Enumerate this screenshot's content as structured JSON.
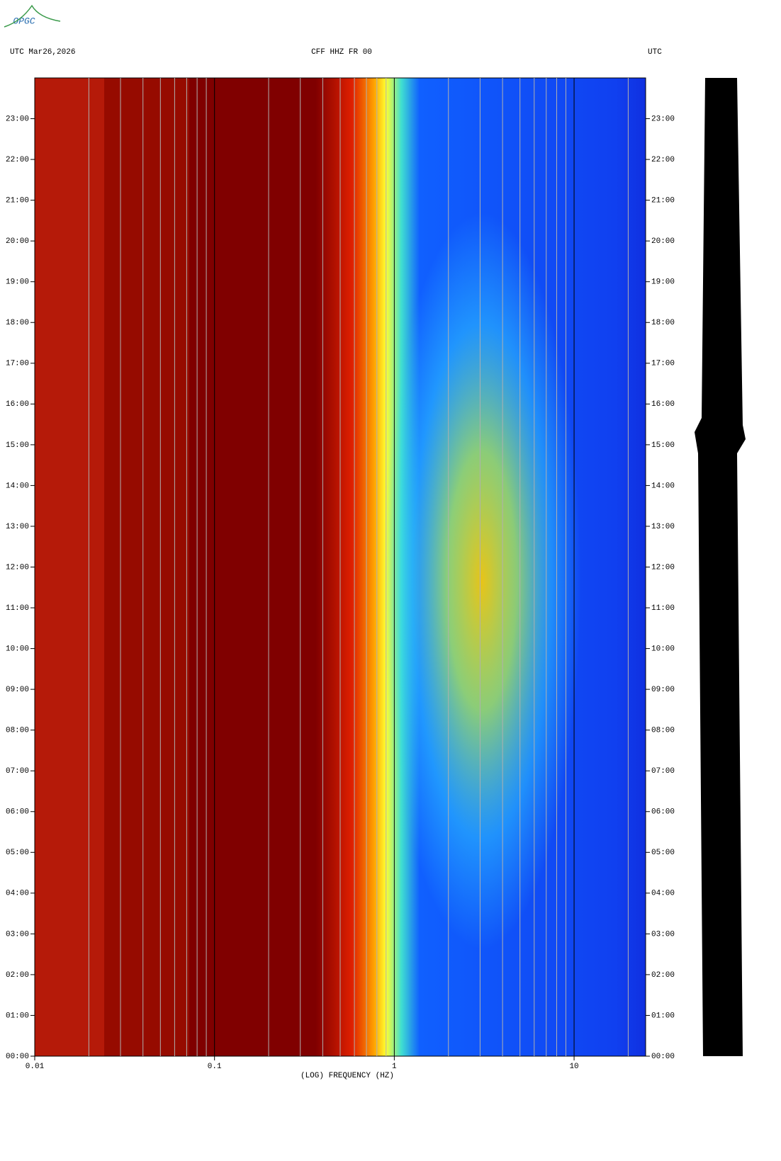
{
  "chart_data": {
    "type": "spectrogram",
    "logo": "OPGC",
    "header_left": "UTC  Mar26,2026",
    "title": "CFF HHZ FR 00",
    "header_right": "UTC",
    "xlabel": "(LOG) FREQUENCY (HZ)",
    "log_x": true,
    "grid": true,
    "xlim": [
      0.01,
      25
    ],
    "xticks": [
      0.01,
      0.1,
      1,
      10
    ],
    "x_minor_ticks": [
      0.02,
      0.03,
      0.04,
      0.05,
      0.06,
      0.07,
      0.08,
      0.09,
      0.2,
      0.3,
      0.4,
      0.5,
      0.6,
      0.7,
      0.8,
      0.9,
      2,
      3,
      4,
      5,
      6,
      7,
      8,
      9,
      20
    ],
    "ylim": [
      0,
      24
    ],
    "yticks": [
      {
        "value": 0,
        "label": "00:00"
      },
      {
        "value": 1,
        "label": "01:00"
      },
      {
        "value": 2,
        "label": "02:00"
      },
      {
        "value": 3,
        "label": "03:00"
      },
      {
        "value": 4,
        "label": "04:00"
      },
      {
        "value": 5,
        "label": "05:00"
      },
      {
        "value": 6,
        "label": "06:00"
      },
      {
        "value": 7,
        "label": "07:00"
      },
      {
        "value": 8,
        "label": "08:00"
      },
      {
        "value": 9,
        "label": "09:00"
      },
      {
        "value": 10,
        "label": "10:00"
      },
      {
        "value": 11,
        "label": "11:00"
      },
      {
        "value": 12,
        "label": "12:00"
      },
      {
        "value": 13,
        "label": "13:00"
      },
      {
        "value": 14,
        "label": "14:00"
      },
      {
        "value": 15,
        "label": "15:00"
      },
      {
        "value": 16,
        "label": "16:00"
      },
      {
        "value": 17,
        "label": "17:00"
      },
      {
        "value": 18,
        "label": "18:00"
      },
      {
        "value": 19,
        "label": "19:00"
      },
      {
        "value": 20,
        "label": "20:00"
      },
      {
        "value": 21,
        "label": "21:00"
      },
      {
        "value": 22,
        "label": "22:00"
      },
      {
        "value": 23,
        "label": "23:00"
      }
    ]
  }
}
